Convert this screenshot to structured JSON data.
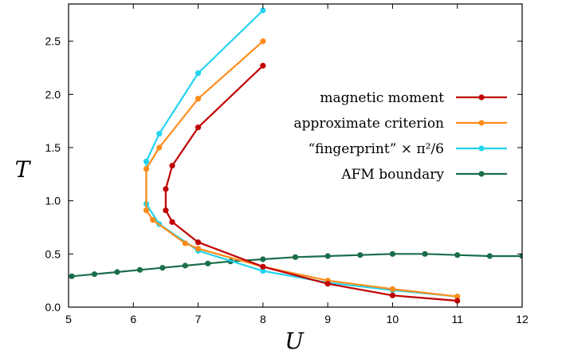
{
  "chart_data": {
    "type": "line",
    "title": "",
    "xlabel": "U",
    "ylabel": "T",
    "xlim": [
      5,
      12
    ],
    "ylim": [
      0,
      2.85
    ],
    "xticks": [
      "5",
      "6",
      "7",
      "8",
      "9",
      "10",
      "11",
      "12"
    ],
    "yticks": [
      "0.0",
      "0.5",
      "1.0",
      "1.5",
      "2.0",
      "2.5"
    ],
    "grid": false,
    "legend_position": "right",
    "series": [
      {
        "name": "magnetic moment",
        "color": "#c00000",
        "points": [
          [
            8.0,
            2.27
          ],
          [
            7.0,
            1.69
          ],
          [
            6.6,
            1.33
          ],
          [
            6.5,
            1.11
          ],
          [
            6.5,
            0.91
          ],
          [
            6.6,
            0.8
          ],
          [
            7.0,
            0.61
          ],
          [
            8.0,
            0.38
          ],
          [
            9.0,
            0.22
          ],
          [
            10.0,
            0.11
          ],
          [
            11.0,
            0.06
          ]
        ]
      },
      {
        "name": "approximate criterion",
        "color": "#ff8c1a",
        "points": [
          [
            8.0,
            2.5
          ],
          [
            7.0,
            1.96
          ],
          [
            6.4,
            1.5
          ],
          [
            6.2,
            1.3
          ],
          [
            6.2,
            0.91
          ],
          [
            6.3,
            0.82
          ],
          [
            6.8,
            0.6
          ],
          [
            7.0,
            0.55
          ],
          [
            8.0,
            0.38
          ],
          [
            9.0,
            0.25
          ],
          [
            10.0,
            0.17
          ],
          [
            11.0,
            0.1
          ]
        ]
      },
      {
        "name": "“fingerprint” × π²/6",
        "color": "#22d3ee",
        "points": [
          [
            8.0,
            2.79
          ],
          [
            7.0,
            2.2
          ],
          [
            6.4,
            1.63
          ],
          [
            6.2,
            1.37
          ],
          [
            6.2,
            0.97
          ],
          [
            6.4,
            0.78
          ],
          [
            7.0,
            0.53
          ],
          [
            8.0,
            0.34
          ],
          [
            9.0,
            0.23
          ],
          [
            10.0,
            0.16
          ],
          [
            11.0,
            0.1
          ]
        ]
      },
      {
        "name": "AFM boundary",
        "color": "#1a6e4a",
        "points": [
          [
            5.05,
            0.29
          ],
          [
            5.4,
            0.31
          ],
          [
            5.75,
            0.33
          ],
          [
            6.1,
            0.35
          ],
          [
            6.45,
            0.37
          ],
          [
            6.8,
            0.39
          ],
          [
            7.15,
            0.41
          ],
          [
            7.5,
            0.43
          ],
          [
            8.0,
            0.45
          ],
          [
            8.5,
            0.47
          ],
          [
            9.0,
            0.48
          ],
          [
            9.5,
            0.49
          ],
          [
            10.0,
            0.5
          ],
          [
            10.5,
            0.5
          ],
          [
            11.0,
            0.49
          ],
          [
            11.5,
            0.48
          ],
          [
            12.0,
            0.48
          ]
        ]
      }
    ]
  }
}
